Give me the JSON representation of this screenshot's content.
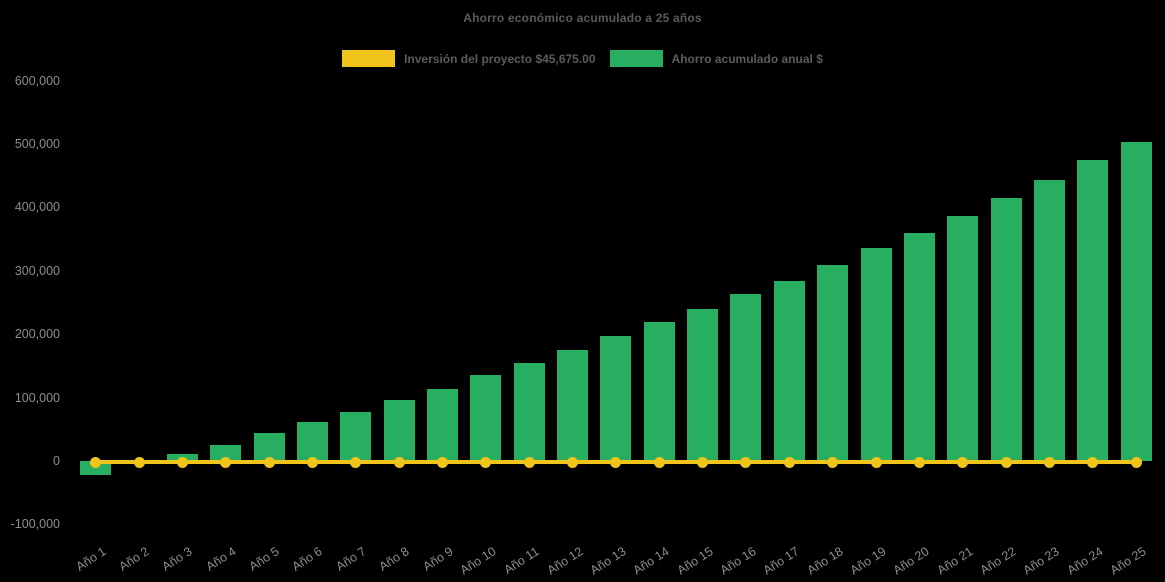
{
  "chart_data": {
    "type": "bar",
    "title": "Ahorro económico acumulado a 25 años",
    "background_color": "#000000",
    "grid": false,
    "legend_position": "top-center",
    "xlabel": "",
    "ylabel": "",
    "ylim": [
      -100000,
      600000
    ],
    "categories": [
      "Año 1",
      "Año 2",
      "Año 3",
      "Año 4",
      "Año 5",
      "Año 6",
      "Año 7",
      "Año 8",
      "Año 9",
      "Año 10",
      "Año 11",
      "Año 12",
      "Año 13",
      "Año 14",
      "Año 15",
      "Año 16",
      "Año 17",
      "Año 18",
      "Año 19",
      "Año 20",
      "Año 21",
      "Año 22",
      "Año 23",
      "Año 24",
      "Año 25"
    ],
    "series": [
      {
        "name": "Ahorro acumulado anual $",
        "type": "bar",
        "color": "#27AE60",
        "values": [
          -22000,
          -4500,
          11000,
          26000,
          44500,
          61000,
          77500,
          97000,
          114000,
          135000,
          154500,
          174500,
          196500,
          219000,
          240000,
          263500,
          284000,
          309500,
          336500,
          360000,
          386000,
          415000,
          443000,
          474000,
          503000
        ]
      },
      {
        "name": "Inversión del proyecto $45,675.00",
        "type": "line",
        "color": "#F0C41A",
        "marker": "circle",
        "constant_value": 0,
        "points": 25
      }
    ],
    "legend": [
      {
        "label": "Inversión del proyecto $45,675.00",
        "color": "#F0C41A"
      },
      {
        "label": "Ahorro acumulado anual $",
        "color": "#27AE60"
      }
    ],
    "yticks": [
      {
        "label": "600,000",
        "value": 600000
      },
      {
        "label": "500,000",
        "value": 500000
      },
      {
        "label": "400,000",
        "value": 400000
      },
      {
        "label": "300,000",
        "value": 300000
      },
      {
        "label": "200,000",
        "value": 200000
      },
      {
        "label": "100,000",
        "value": 100000
      },
      {
        "label": "0",
        "value": 0
      },
      {
        "label": "-100,000",
        "value": -100000
      }
    ],
    "text_colors": {
      "title": "#5A5B5E",
      "ticks": "#8C8D8F"
    }
  }
}
